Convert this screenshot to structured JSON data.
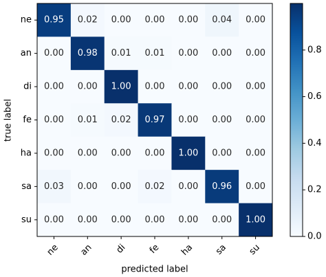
{
  "chart_data": {
    "type": "heatmap",
    "xlabel": "predicted label",
    "ylabel": "true label",
    "x_categories": [
      "ne",
      "an",
      "di",
      "fe",
      "ha",
      "sa",
      "su"
    ],
    "y_categories": [
      "ne",
      "an",
      "di",
      "fe",
      "ha",
      "sa",
      "su"
    ],
    "values": [
      [
        0.95,
        0.02,
        0,
        0,
        0,
        0.04,
        0
      ],
      [
        0,
        0.98,
        0.01,
        0.01,
        0,
        0,
        0
      ],
      [
        0,
        0,
        1,
        0,
        0,
        0,
        0
      ],
      [
        0,
        0.01,
        0.02,
        0.97,
        0,
        0,
        0
      ],
      [
        0,
        0,
        0,
        0,
        1,
        0,
        0
      ],
      [
        0.03,
        0,
        0,
        0.02,
        0,
        0.96,
        0
      ],
      [
        0,
        0,
        0,
        0,
        0,
        0,
        1
      ]
    ],
    "value_labels": [
      [
        "0.95",
        "0.02",
        "0.00",
        "0.00",
        "0.00",
        "0.04",
        "0.00"
      ],
      [
        "0.00",
        "0.98",
        "0.01",
        "0.01",
        "0.00",
        "0.00",
        "0.00"
      ],
      [
        "0.00",
        "0.00",
        "1.00",
        "0.00",
        "0.00",
        "0.00",
        "0.00"
      ],
      [
        "0.00",
        "0.01",
        "0.02",
        "0.97",
        "0.00",
        "0.00",
        "0.00"
      ],
      [
        "0.00",
        "0.00",
        "0.00",
        "0.00",
        "1.00",
        "0.00",
        "0.00"
      ],
      [
        "0.03",
        "0.00",
        "0.00",
        "0.02",
        "0.00",
        "0.96",
        "0.00"
      ],
      [
        "0.00",
        "0.00",
        "0.00",
        "0.00",
        "0.00",
        "0.00",
        "1.00"
      ]
    ],
    "colormap": "Blues",
    "clim": [
      0,
      1
    ],
    "colorbar_ticks": [
      {
        "value": 0,
        "label": "0.0"
      },
      {
        "value": 0.2,
        "label": "0.2"
      },
      {
        "value": 0.4,
        "label": "0.4"
      },
      {
        "value": 0.6,
        "label": "0.6"
      },
      {
        "value": 0.8,
        "label": "0.8"
      }
    ]
  }
}
